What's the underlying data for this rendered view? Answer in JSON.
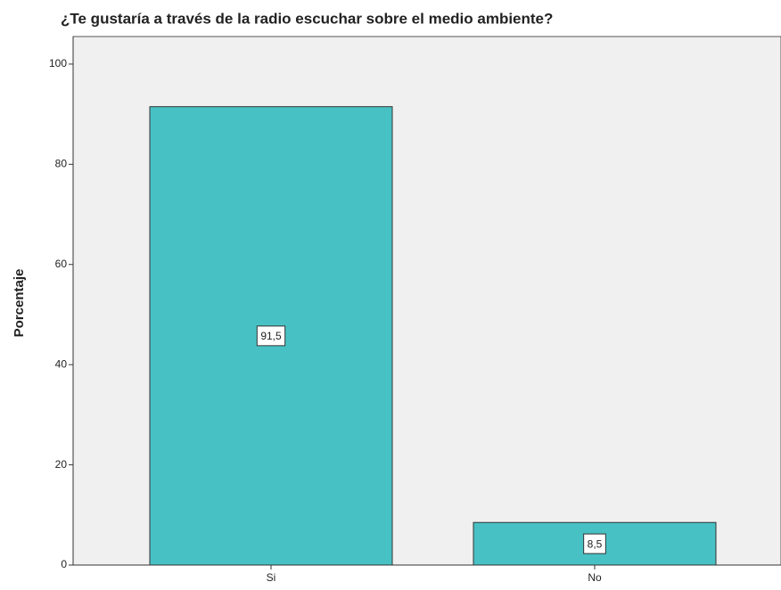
{
  "chart_data": {
    "type": "bar",
    "title": "¿Te gustaría a través de la radio escuchar sobre el medio ambiente?",
    "y_label": "Porcentaje",
    "categories": [
      "Si",
      "No"
    ],
    "values": [
      91.5,
      8.5
    ],
    "value_labels": [
      "91,5",
      "8,5"
    ],
    "color": "#48c1c4",
    "ylim": [
      0,
      105.5
    ],
    "yticks": [
      0,
      20,
      40,
      60,
      80,
      100
    ],
    "grid": false
  }
}
